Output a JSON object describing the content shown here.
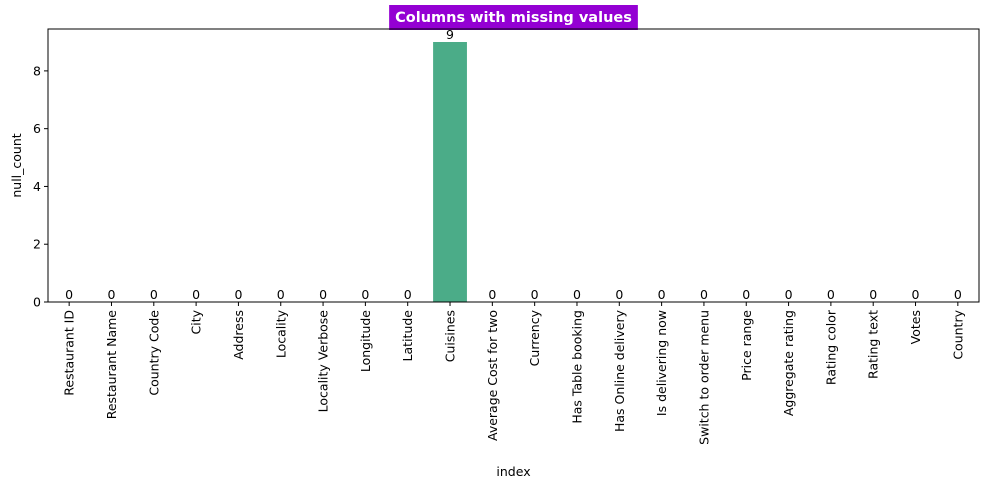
{
  "chart_data": {
    "type": "bar",
    "title": "Columns with missing values",
    "xlabel": "index",
    "ylabel": "null_count",
    "categories": [
      "Restaurant ID",
      "Restaurant Name",
      "Country Code",
      "City",
      "Address",
      "Locality",
      "Locality Verbose",
      "Longitude",
      "Latitude",
      "Cuisines",
      "Average Cost for two",
      "Currency",
      "Has Table booking",
      "Has Online delivery",
      "Is delivering now",
      "Switch to order menu",
      "Price range",
      "Aggregate rating",
      "Rating color",
      "Rating text",
      "Votes",
      "Country"
    ],
    "values": [
      0,
      0,
      0,
      0,
      0,
      0,
      0,
      0,
      0,
      9,
      0,
      0,
      0,
      0,
      0,
      0,
      0,
      0,
      0,
      0,
      0,
      0
    ],
    "bar_labels": [
      "0",
      "0",
      "0",
      "0",
      "0",
      "0",
      "0",
      "0",
      "0",
      "9",
      "0",
      "0",
      "0",
      "0",
      "0",
      "0",
      "0",
      "0",
      "0",
      "0",
      "0",
      "0"
    ],
    "yticks": [
      "0",
      "2",
      "4",
      "6",
      "8"
    ],
    "ylim": [
      0,
      9.45
    ],
    "grid": false,
    "legend": "none",
    "colors": {
      "bar": "#4bac88",
      "title_bg": "#9400d3",
      "title_text": "#ffffff",
      "axis": "#000000"
    }
  }
}
